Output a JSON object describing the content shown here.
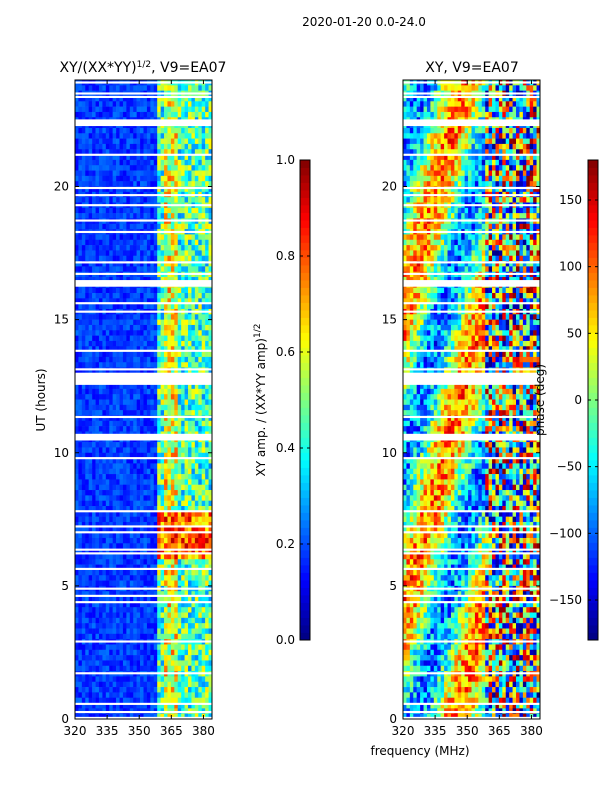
{
  "suptitle": "2020-01-20 0.0-24.0",
  "xlabel": "frequency (MHz)",
  "chart_data": [
    {
      "type": "heatmap",
      "title_main": "XY/(XX*YY)",
      "title_exp": "1/2",
      "title_tail": ", V9=EA07",
      "ylabel": "UT (hours)",
      "xlim": [
        320,
        384
      ],
      "ylim": [
        0,
        24
      ],
      "xticks": [
        "320",
        "335",
        "350",
        "365",
        "380"
      ],
      "xtick_values": [
        320,
        335,
        350,
        365,
        380
      ],
      "yticks": [
        "0",
        "5",
        "10",
        "15",
        "20"
      ],
      "ytick_values": [
        0,
        5,
        10,
        15,
        20
      ],
      "colorbar": {
        "label_main": "XY amp. / (XX*YY amp)",
        "label_exp": "1/2",
        "range": [
          0.0,
          1.0
        ],
        "ticks": [
          "0.0",
          "0.2",
          "0.4",
          "0.6",
          "0.8",
          "1.0"
        ],
        "tick_values": [
          0.0,
          0.2,
          0.4,
          0.6,
          0.8,
          1.0
        ]
      }
    },
    {
      "type": "heatmap",
      "title_main": "XY, V9=EA07",
      "ylabel": "",
      "xlim": [
        320,
        384
      ],
      "ylim": [
        0,
        24
      ],
      "xticks": [
        "320",
        "335",
        "350",
        "365",
        "380"
      ],
      "xtick_values": [
        320,
        335,
        350,
        365,
        380
      ],
      "yticks": [
        "0",
        "5",
        "10",
        "15",
        "20"
      ],
      "ytick_values": [
        0,
        5,
        10,
        15,
        20
      ],
      "colorbar": {
        "label_main": "phase (deg)",
        "range": [
          -180,
          180
        ],
        "ticks": [
          "−150",
          "−100",
          "−50",
          "0",
          "50",
          "100",
          "150"
        ],
        "tick_values": [
          -150,
          -100,
          -50,
          0,
          50,
          100,
          150
        ]
      }
    }
  ]
}
